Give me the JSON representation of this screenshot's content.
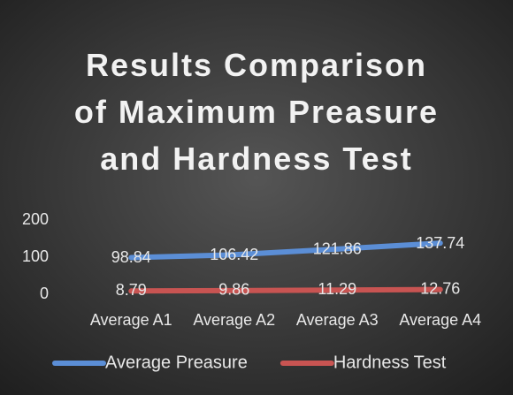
{
  "chart_data": {
    "type": "line",
    "title": "Results Comparison of Maximum Preasure and Hardness Test",
    "categories": [
      "Average A1",
      "Average A2",
      "Average A3",
      "Average A4"
    ],
    "series": [
      {
        "name": "Average Preasure",
        "color": "#5b8ed6",
        "values": [
          98.84,
          106.42,
          121.86,
          137.74
        ]
      },
      {
        "name": "Hardness Test",
        "color": "#c85452",
        "values": [
          8.79,
          9.86,
          11.29,
          12.76
        ]
      }
    ],
    "ylim": [
      0,
      200
    ],
    "yticks": [
      0,
      100,
      200
    ],
    "grid": false,
    "legend": "bottom"
  }
}
